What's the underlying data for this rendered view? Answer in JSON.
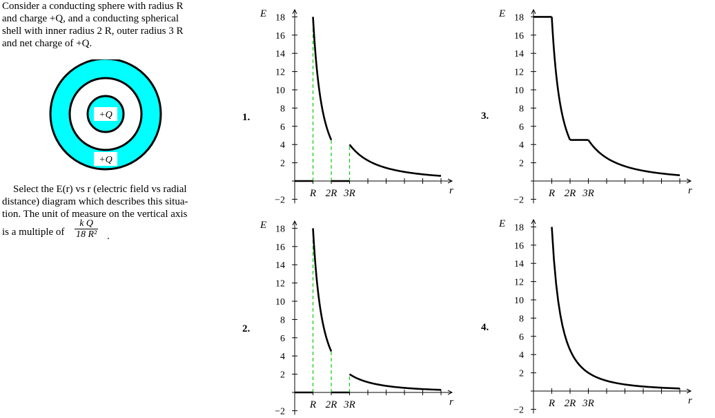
{
  "problem": {
    "intro_lines": [
      "Consider a conducting sphere with radius R",
      "and charge +Q, and a conducting spherical",
      "shell with inner radius 2 R, outer radius 3 R",
      "and net charge of +Q."
    ],
    "select_lines": [
      "Select the E(r) vs r (electric field vs radial",
      "distance) diagram which describes this situa-",
      "tion. The unit of measure on the vertical axis",
      "is a multiple of"
    ],
    "unit_numerator": "k Q",
    "unit_denominator": "18 R²",
    "unit_tail": "."
  },
  "figure": {
    "inner_label": "+Q",
    "outer_label": "+Q",
    "shell_color": "#00ffff"
  },
  "axes": {
    "ylabel": "E",
    "xlabel": "r",
    "y_ticks": [
      "18",
      "16",
      "14",
      "12",
      "10",
      "8",
      "6",
      "4",
      "2",
      "−2"
    ],
    "x_tick_labels": [
      "R",
      "2R",
      "3R"
    ]
  },
  "chart_data": [
    {
      "type": "line",
      "choice": "1.",
      "ylim": [
        -2,
        18
      ],
      "segments": [
        {
          "x": [
            0,
            1
          ],
          "y": [
            0,
            0
          ]
        },
        {
          "x": [
            1,
            1.2,
            1.4,
            1.6,
            1.8,
            2
          ],
          "y": [
            18,
            12.5,
            9.18,
            7.03,
            5.56,
            4.5
          ]
        },
        {
          "x": [
            2,
            3
          ],
          "y": [
            0,
            0
          ]
        },
        {
          "x": [
            3,
            4,
            5,
            6,
            7,
            8
          ],
          "y": [
            4,
            2.25,
            1.44,
            1,
            0.73,
            0.56
          ]
        }
      ]
    },
    {
      "type": "line",
      "choice": "3.",
      "ylim": [
        -2,
        18
      ],
      "segments": [
        {
          "x": [
            0,
            1
          ],
          "y": [
            18,
            18
          ]
        },
        {
          "x": [
            1,
            1.2,
            1.4,
            1.6,
            1.8,
            2
          ],
          "y": [
            18,
            12.5,
            9.18,
            7.03,
            5.56,
            4.5
          ]
        },
        {
          "x": [
            2,
            3
          ],
          "y": [
            4.5,
            4.5
          ]
        },
        {
          "x": [
            3,
            4,
            5,
            6,
            7,
            8
          ],
          "y": [
            4.5,
            2.53,
            1.62,
            1.13,
            0.83,
            0.63
          ]
        }
      ]
    },
    {
      "type": "line",
      "choice": "2.",
      "ylim": [
        -2,
        18
      ],
      "segments": [
        {
          "x": [
            0,
            1
          ],
          "y": [
            0,
            0
          ]
        },
        {
          "x": [
            1,
            1.2,
            1.4,
            1.6,
            1.8,
            2
          ],
          "y": [
            18,
            12.5,
            9.18,
            7.03,
            5.56,
            4.5
          ]
        },
        {
          "x": [
            2,
            3
          ],
          "y": [
            0,
            0
          ]
        },
        {
          "x": [
            3,
            4,
            5,
            6,
            7,
            8
          ],
          "y": [
            2,
            1.13,
            0.72,
            0.5,
            0.37,
            0.28
          ]
        }
      ]
    },
    {
      "type": "line",
      "choice": "4.",
      "ylim": [
        -2,
        18
      ],
      "segments": [
        {
          "x": [
            1,
            1.2,
            1.4,
            1.6,
            1.8,
            2,
            2.5,
            3,
            4,
            5,
            6,
            7,
            8
          ],
          "y": [
            18,
            12.5,
            9.18,
            7.03,
            5.56,
            4.5,
            2.88,
            2,
            1.13,
            0.72,
            0.5,
            0.37,
            0.28
          ]
        }
      ]
    }
  ]
}
